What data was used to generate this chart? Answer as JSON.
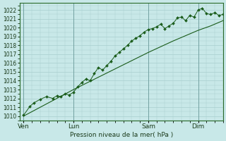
{
  "background_color": "#c8e8e8",
  "grid_color": "#a8cece",
  "line_color": "#1a5c1a",
  "marker_color": "#1a5c1a",
  "ylabel": "Pression niveau de la mer( hPa )",
  "ylim": [
    1009.5,
    1022.8
  ],
  "yticks": [
    1010,
    1011,
    1012,
    1013,
    1014,
    1015,
    1016,
    1017,
    1018,
    1019,
    1020,
    1021,
    1022
  ],
  "xtick_labels": [
    "Ven",
    "Lun",
    "Sam",
    "Dim"
  ],
  "xtick_pos": [
    0,
    24,
    60,
    84
  ],
  "xlim": [
    -2,
    96
  ],
  "smooth_line_x": [
    0,
    12,
    24,
    36,
    48,
    60,
    72,
    84,
    90,
    96
  ],
  "smooth_line_y": [
    1010.0,
    1011.5,
    1013.0,
    1014.4,
    1015.8,
    1017.2,
    1018.5,
    1019.7,
    1020.2,
    1020.8
  ],
  "jagged_x": [
    0,
    3,
    5,
    8,
    11,
    14,
    16,
    18,
    20,
    22,
    24,
    26,
    28,
    30,
    32,
    34,
    36,
    38,
    40,
    42,
    44,
    46,
    48,
    50,
    52,
    54,
    56,
    58,
    60,
    62,
    64,
    66,
    68,
    70,
    72,
    74,
    76,
    78,
    80,
    82,
    84,
    86,
    88,
    90,
    92,
    94,
    96
  ],
  "jagged_y": [
    1010.1,
    1011.1,
    1011.5,
    1011.9,
    1012.2,
    1012.0,
    1012.3,
    1012.2,
    1012.5,
    1012.4,
    1012.7,
    1013.3,
    1013.8,
    1014.2,
    1014.0,
    1014.8,
    1015.5,
    1015.2,
    1015.7,
    1016.2,
    1016.8,
    1017.2,
    1017.6,
    1018.0,
    1018.5,
    1018.8,
    1019.1,
    1019.5,
    1019.8,
    1019.9,
    1020.1,
    1020.4,
    1019.9,
    1020.2,
    1020.5,
    1021.1,
    1021.2,
    1020.8,
    1021.4,
    1021.2,
    1022.0,
    1022.2,
    1021.6,
    1021.5,
    1021.7,
    1021.4,
    1021.5
  ]
}
